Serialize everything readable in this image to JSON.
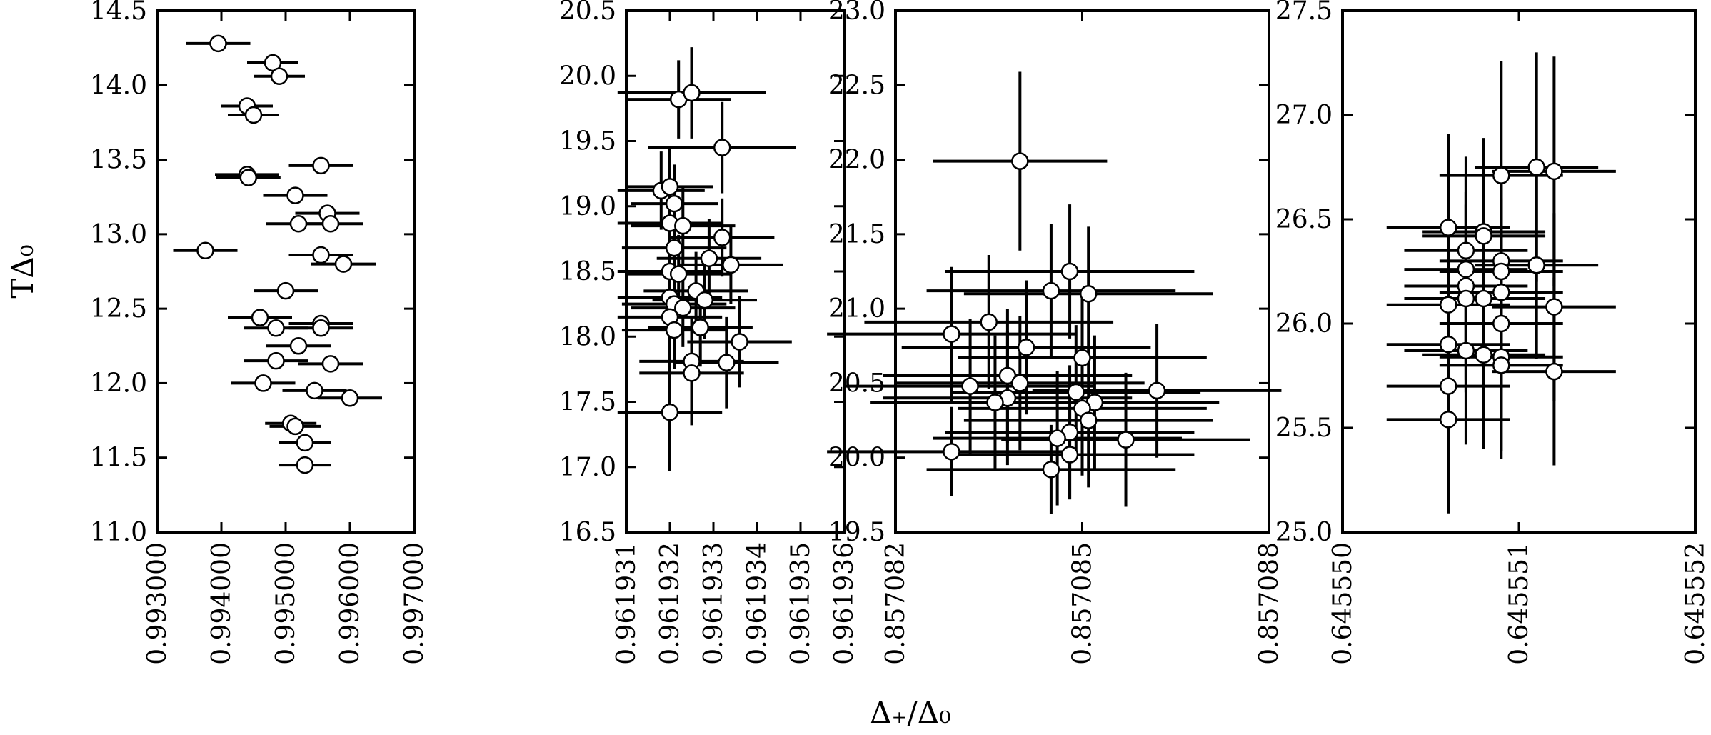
{
  "figure": {
    "ylabel": "TΔ₀",
    "xlabel": "Δ₊/Δ₀"
  },
  "chart_data": [
    {
      "type": "scatter",
      "error_bars": true,
      "xlim": [
        0.993,
        0.997
      ],
      "ylim": [
        11.0,
        14.5
      ],
      "xticks": [
        "0.993000",
        "0.994000",
        "0.995000",
        "0.996000",
        "0.997000"
      ],
      "xtick_values": [
        0.993,
        0.994,
        0.995,
        0.996,
        0.997
      ],
      "yticks": [
        "11.0",
        "11.5",
        "12.0",
        "12.5",
        "13.0",
        "13.5",
        "14.0",
        "14.5"
      ],
      "ytick_values": [
        11.0,
        11.5,
        12.0,
        12.5,
        13.0,
        13.5,
        14.0,
        14.5
      ],
      "points": [
        {
          "x": 0.99395,
          "y": 14.28,
          "xerr": 0.0005,
          "yerr": 0
        },
        {
          "x": 0.9948,
          "y": 14.15,
          "xerr": 0.0004,
          "yerr": 0
        },
        {
          "x": 0.9949,
          "y": 14.06,
          "xerr": 0.0004,
          "yerr": 0
        },
        {
          "x": 0.9944,
          "y": 13.86,
          "xerr": 0.0004,
          "yerr": 0
        },
        {
          "x": 0.9945,
          "y": 13.8,
          "xerr": 0.0004,
          "yerr": 0
        },
        {
          "x": 0.99555,
          "y": 13.46,
          "xerr": 0.0005,
          "yerr": 0
        },
        {
          "x": 0.9944,
          "y": 13.4,
          "xerr": 0.0005,
          "yerr": 0
        },
        {
          "x": 0.99442,
          "y": 13.38,
          "xerr": 0.0005,
          "yerr": 0
        },
        {
          "x": 0.99515,
          "y": 13.26,
          "xerr": 0.0005,
          "yerr": 0
        },
        {
          "x": 0.99565,
          "y": 13.14,
          "xerr": 0.0005,
          "yerr": 0
        },
        {
          "x": 0.9952,
          "y": 13.07,
          "xerr": 0.0005,
          "yerr": 0
        },
        {
          "x": 0.9957,
          "y": 13.07,
          "xerr": 0.0005,
          "yerr": 0
        },
        {
          "x": 0.99375,
          "y": 12.89,
          "xerr": 0.0005,
          "yerr": 0
        },
        {
          "x": 0.99555,
          "y": 12.86,
          "xerr": 0.0005,
          "yerr": 0
        },
        {
          "x": 0.9959,
          "y": 12.8,
          "xerr": 0.0005,
          "yerr": 0
        },
        {
          "x": 0.995,
          "y": 12.62,
          "xerr": 0.0005,
          "yerr": 0
        },
        {
          "x": 0.9946,
          "y": 12.44,
          "xerr": 0.0005,
          "yerr": 0
        },
        {
          "x": 0.99485,
          "y": 12.37,
          "xerr": 0.0005,
          "yerr": 0
        },
        {
          "x": 0.99555,
          "y": 12.4,
          "xerr": 0.0005,
          "yerr": 0
        },
        {
          "x": 0.99555,
          "y": 12.37,
          "xerr": 0.0005,
          "yerr": 0
        },
        {
          "x": 0.9952,
          "y": 12.25,
          "xerr": 0.0005,
          "yerr": 0
        },
        {
          "x": 0.99485,
          "y": 12.15,
          "xerr": 0.0005,
          "yerr": 0
        },
        {
          "x": 0.9957,
          "y": 12.13,
          "xerr": 0.0005,
          "yerr": 0
        },
        {
          "x": 0.99465,
          "y": 12.0,
          "xerr": 0.0005,
          "yerr": 0
        },
        {
          "x": 0.99545,
          "y": 11.95,
          "xerr": 0.0005,
          "yerr": 0
        },
        {
          "x": 0.996,
          "y": 11.9,
          "xerr": 0.0005,
          "yerr": 0
        },
        {
          "x": 0.99508,
          "y": 11.73,
          "xerr": 0.0004,
          "yerr": 0
        },
        {
          "x": 0.99515,
          "y": 11.71,
          "xerr": 0.0004,
          "yerr": 0
        },
        {
          "x": 0.9953,
          "y": 11.6,
          "xerr": 0.0004,
          "yerr": 0
        },
        {
          "x": 0.9953,
          "y": 11.45,
          "xerr": 0.0004,
          "yerr": 0
        }
      ]
    },
    {
      "type": "scatter",
      "error_bars": true,
      "xlim": [
        0.961931,
        0.961936
      ],
      "ylim": [
        16.5,
        20.5
      ],
      "xticks": [
        "0.961931",
        "0.961932",
        "0.961933",
        "0.961934",
        "0.961935",
        "0.961936"
      ],
      "xtick_values": [
        0.961931,
        0.961932,
        0.961933,
        0.961934,
        0.961935,
        0.961936
      ],
      "yticks": [
        "16.5",
        "17.0",
        "17.5",
        "18.0",
        "18.5",
        "19.0",
        "19.5",
        "20.0",
        "20.5"
      ],
      "ytick_values": [
        16.5,
        17.0,
        17.5,
        18.0,
        18.5,
        19.0,
        19.5,
        20.0,
        20.5
      ],
      "points": [
        {
          "x": 0.9619322,
          "y": 19.82,
          "xerr": 1.2e-06,
          "yerr": 0.3
        },
        {
          "x": 0.9619325,
          "y": 19.87,
          "xerr": 1.7e-06,
          "yerr": 0.35
        },
        {
          "x": 0.9619332,
          "y": 19.45,
          "xerr": 1.7e-06,
          "yerr": 0.35
        },
        {
          "x": 0.9619318,
          "y": 19.12,
          "xerr": 1e-06,
          "yerr": 0.3
        },
        {
          "x": 0.961932,
          "y": 19.15,
          "xerr": 1e-06,
          "yerr": 0.3
        },
        {
          "x": 0.9619321,
          "y": 19.02,
          "xerr": 1e-06,
          "yerr": 0.3
        },
        {
          "x": 0.961932,
          "y": 18.87,
          "xerr": 1.2e-06,
          "yerr": 0.3
        },
        {
          "x": 0.9619323,
          "y": 18.85,
          "xerr": 1.2e-06,
          "yerr": 0.3
        },
        {
          "x": 0.9619332,
          "y": 18.76,
          "xerr": 1.2e-06,
          "yerr": 0.3
        },
        {
          "x": 0.9619321,
          "y": 18.68,
          "xerr": 1.2e-06,
          "yerr": 0.3
        },
        {
          "x": 0.9619329,
          "y": 18.6,
          "xerr": 1.2e-06,
          "yerr": 0.3
        },
        {
          "x": 0.9619334,
          "y": 18.55,
          "xerr": 1.2e-06,
          "yerr": 0.3
        },
        {
          "x": 0.961932,
          "y": 18.5,
          "xerr": 1.2e-06,
          "yerr": 0.3
        },
        {
          "x": 0.9619322,
          "y": 18.48,
          "xerr": 1.2e-06,
          "yerr": 0.3
        },
        {
          "x": 0.9619326,
          "y": 18.35,
          "xerr": 1.2e-06,
          "yerr": 0.3
        },
        {
          "x": 0.961932,
          "y": 18.3,
          "xerr": 1.2e-06,
          "yerr": 0.3
        },
        {
          "x": 0.9619328,
          "y": 18.28,
          "xerr": 1.2e-06,
          "yerr": 0.3
        },
        {
          "x": 0.9619321,
          "y": 18.25,
          "xerr": 1.2e-06,
          "yerr": 0.3
        },
        {
          "x": 0.9619323,
          "y": 18.22,
          "xerr": 1.2e-06,
          "yerr": 0.3
        },
        {
          "x": 0.961932,
          "y": 18.15,
          "xerr": 1.2e-06,
          "yerr": 0.3
        },
        {
          "x": 0.9619321,
          "y": 18.05,
          "xerr": 1.2e-06,
          "yerr": 0.3
        },
        {
          "x": 0.9619327,
          "y": 18.07,
          "xerr": 1.2e-06,
          "yerr": 0.3
        },
        {
          "x": 0.9619336,
          "y": 17.96,
          "xerr": 1.2e-06,
          "yerr": 0.35
        },
        {
          "x": 0.9619325,
          "y": 17.81,
          "xerr": 1.2e-06,
          "yerr": 0.35
        },
        {
          "x": 0.9619333,
          "y": 17.8,
          "xerr": 1.2e-06,
          "yerr": 0.35
        },
        {
          "x": 0.9619325,
          "y": 17.72,
          "xerr": 1.2e-06,
          "yerr": 0.4
        },
        {
          "x": 0.961932,
          "y": 17.42,
          "xerr": 1.2e-06,
          "yerr": 0.45
        }
      ]
    },
    {
      "type": "scatter",
      "error_bars": true,
      "xlim": [
        0.857082,
        0.857088
      ],
      "ylim": [
        19.5,
        23.0
      ],
      "xticks": [
        "0.857082",
        "0.857085",
        "0.857088"
      ],
      "xtick_values": [
        0.857082,
        0.857085,
        0.857088
      ],
      "yticks": [
        "19.5",
        "20.0",
        "20.5",
        "21.0",
        "21.5",
        "22.0",
        "22.5",
        "23.0"
      ],
      "ytick_values": [
        19.5,
        20.0,
        20.5,
        21.0,
        21.5,
        22.0,
        22.5,
        23.0
      ],
      "points": [
        {
          "x": 0.857084,
          "y": 21.99,
          "xerr": 1.4e-06,
          "yerr": 0.6
        },
        {
          "x": 0.8570848,
          "y": 21.25,
          "xerr": 2e-06,
          "yerr": 0.45
        },
        {
          "x": 0.8570845,
          "y": 21.12,
          "xerr": 2e-06,
          "yerr": 0.45
        },
        {
          "x": 0.8570851,
          "y": 21.1,
          "xerr": 2e-06,
          "yerr": 0.45
        },
        {
          "x": 0.8570835,
          "y": 20.91,
          "xerr": 2e-06,
          "yerr": 0.45
        },
        {
          "x": 0.8570829,
          "y": 20.83,
          "xerr": 2e-06,
          "yerr": 0.45
        },
        {
          "x": 0.8570841,
          "y": 20.74,
          "xerr": 2e-06,
          "yerr": 0.45
        },
        {
          "x": 0.857085,
          "y": 20.67,
          "xerr": 2e-06,
          "yerr": 0.45
        },
        {
          "x": 0.8570838,
          "y": 20.55,
          "xerr": 2e-06,
          "yerr": 0.45
        },
        {
          "x": 0.857084,
          "y": 20.5,
          "xerr": 2e-06,
          "yerr": 0.45
        },
        {
          "x": 0.8570832,
          "y": 20.48,
          "xerr": 2e-06,
          "yerr": 0.45
        },
        {
          "x": 0.8570862,
          "y": 20.45,
          "xerr": 2e-06,
          "yerr": 0.45
        },
        {
          "x": 0.8570849,
          "y": 20.44,
          "xerr": 2e-06,
          "yerr": 0.45
        },
        {
          "x": 0.8570838,
          "y": 20.4,
          "xerr": 2e-06,
          "yerr": 0.45
        },
        {
          "x": 0.8570836,
          "y": 20.37,
          "xerr": 2e-06,
          "yerr": 0.45
        },
        {
          "x": 0.8570852,
          "y": 20.37,
          "xerr": 2e-06,
          "yerr": 0.45
        },
        {
          "x": 0.857085,
          "y": 20.33,
          "xerr": 2e-06,
          "yerr": 0.45
        },
        {
          "x": 0.8570851,
          "y": 20.25,
          "xerr": 2e-06,
          "yerr": 0.45
        },
        {
          "x": 0.8570848,
          "y": 20.17,
          "xerr": 2e-06,
          "yerr": 0.45
        },
        {
          "x": 0.8570846,
          "y": 20.13,
          "xerr": 2e-06,
          "yerr": 0.45
        },
        {
          "x": 0.8570857,
          "y": 20.12,
          "xerr": 2e-06,
          "yerr": 0.45
        },
        {
          "x": 0.8570829,
          "y": 20.04,
          "xerr": 2e-06,
          "yerr": 0.3
        },
        {
          "x": 0.8570848,
          "y": 20.02,
          "xerr": 2e-06,
          "yerr": 0.3
        },
        {
          "x": 0.8570845,
          "y": 19.92,
          "xerr": 2e-06,
          "yerr": 0.3
        }
      ]
    },
    {
      "type": "scatter",
      "error_bars": true,
      "xlim": [
        0.64555,
        0.645552
      ],
      "ylim": [
        25.0,
        27.5
      ],
      "xticks": [
        "0.645550",
        "0.645551",
        "0.645552"
      ],
      "xtick_values": [
        0.64555,
        0.645551,
        0.645552
      ],
      "yticks": [
        "25.0",
        "25.5",
        "26.0",
        "26.5",
        "27.0",
        "27.5"
      ],
      "ytick_values": [
        25.0,
        25.5,
        26.0,
        26.5,
        27.0,
        27.5
      ],
      "points": [
        {
          "x": 0.6455511,
          "y": 26.75,
          "xerr": 3.5e-07,
          "yerr": 0.55
        },
        {
          "x": 0.6455512,
          "y": 26.73,
          "xerr": 3.5e-07,
          "yerr": 0.55
        },
        {
          "x": 0.6455509,
          "y": 26.71,
          "xerr": 3.5e-07,
          "yerr": 0.55
        },
        {
          "x": 0.6455506,
          "y": 26.46,
          "xerr": 3.5e-07,
          "yerr": 0.45
        },
        {
          "x": 0.6455508,
          "y": 26.44,
          "xerr": 3.5e-07,
          "yerr": 0.45
        },
        {
          "x": 0.6455508,
          "y": 26.42,
          "xerr": 3.5e-07,
          "yerr": 0.45
        },
        {
          "x": 0.6455507,
          "y": 26.35,
          "xerr": 3.5e-07,
          "yerr": 0.45
        },
        {
          "x": 0.6455509,
          "y": 26.3,
          "xerr": 3.5e-07,
          "yerr": 0.45
        },
        {
          "x": 0.6455511,
          "y": 26.28,
          "xerr": 3.5e-07,
          "yerr": 0.45
        },
        {
          "x": 0.6455507,
          "y": 26.26,
          "xerr": 3.5e-07,
          "yerr": 0.45
        },
        {
          "x": 0.6455509,
          "y": 26.25,
          "xerr": 3.5e-07,
          "yerr": 0.45
        },
        {
          "x": 0.6455507,
          "y": 26.18,
          "xerr": 3.5e-07,
          "yerr": 0.45
        },
        {
          "x": 0.6455509,
          "y": 26.15,
          "xerr": 3.5e-07,
          "yerr": 0.45
        },
        {
          "x": 0.6455507,
          "y": 26.12,
          "xerr": 3.5e-07,
          "yerr": 0.45
        },
        {
          "x": 0.6455508,
          "y": 26.12,
          "xerr": 3.5e-07,
          "yerr": 0.45
        },
        {
          "x": 0.6455506,
          "y": 26.09,
          "xerr": 3.5e-07,
          "yerr": 0.45
        },
        {
          "x": 0.6455512,
          "y": 26.08,
          "xerr": 3.5e-07,
          "yerr": 0.45
        },
        {
          "x": 0.6455509,
          "y": 26.0,
          "xerr": 3.5e-07,
          "yerr": 0.45
        },
        {
          "x": 0.6455506,
          "y": 25.9,
          "xerr": 3.5e-07,
          "yerr": 0.45
        },
        {
          "x": 0.6455507,
          "y": 25.87,
          "xerr": 3.5e-07,
          "yerr": 0.45
        },
        {
          "x": 0.6455508,
          "y": 25.85,
          "xerr": 3.5e-07,
          "yerr": 0.45
        },
        {
          "x": 0.6455509,
          "y": 25.84,
          "xerr": 3.5e-07,
          "yerr": 0.45
        },
        {
          "x": 0.6455509,
          "y": 25.8,
          "xerr": 3.5e-07,
          "yerr": 0.45
        },
        {
          "x": 0.6455512,
          "y": 25.77,
          "xerr": 3.5e-07,
          "yerr": 0.45
        },
        {
          "x": 0.6455506,
          "y": 25.7,
          "xerr": 3.5e-07,
          "yerr": 0.5
        },
        {
          "x": 0.6455506,
          "y": 25.54,
          "xerr": 3.5e-07,
          "yerr": 0.45
        }
      ]
    }
  ]
}
